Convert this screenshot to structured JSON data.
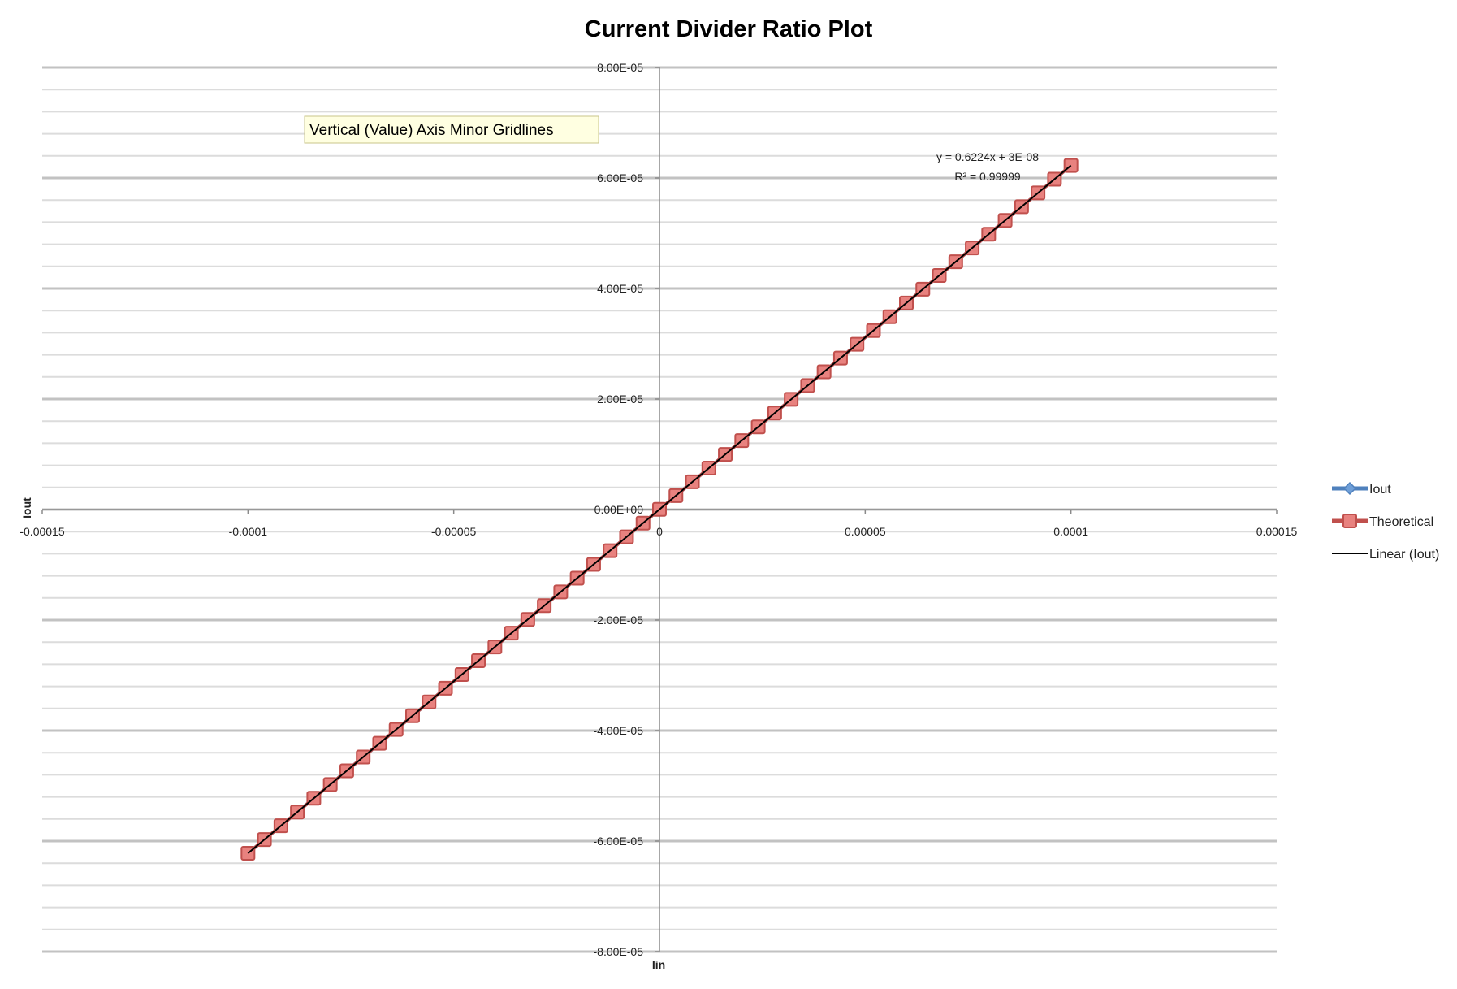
{
  "chart_data": {
    "type": "scatter",
    "title": "Current Divider Ratio Plot",
    "xlabel": "Iin",
    "ylabel": "Iout",
    "xlim": [
      -0.00015,
      0.00015
    ],
    "ylim": [
      -8e-05,
      8e-05
    ],
    "x_ticks": [
      -0.00015,
      -0.0001,
      -5e-05,
      0,
      5e-05,
      0.0001,
      0.00015
    ],
    "x_tick_labels": [
      "-0.00015",
      "-0.0001",
      "-0.00005",
      "0",
      "0.00005",
      "0.0001",
      "0.00015"
    ],
    "y_ticks": [
      8e-05,
      6e-05,
      4e-05,
      2e-05,
      0,
      -2e-05,
      -4e-05,
      -6e-05,
      -8e-05
    ],
    "y_tick_labels": [
      "8.00E-05",
      "6.00E-05",
      "4.00E-05",
      "2.00E-05",
      "0.00E+00",
      "-2.00E-05",
      "-4.00E-05",
      "-6.00E-05",
      "-8.00E-05"
    ],
    "y_minor_step": 4e-06,
    "grid": {
      "major_horizontal": true,
      "minor_horizontal": true,
      "vertical": false
    },
    "legend_position": "right",
    "series": [
      {
        "name": "Iout",
        "color": "#4f81bd",
        "marker": "diamond",
        "x_range": [
          -0.0001,
          0.0001
        ],
        "x_step": 4e-06,
        "slope": 0.6224,
        "intercept": 3e-08
      },
      {
        "name": "Theoretical",
        "color": "#c0504d",
        "marker": "square",
        "x_range": [
          -0.0001,
          0.0001
        ],
        "x_step": 4e-06,
        "slope": 0.6224,
        "intercept": 3e-08
      }
    ],
    "trendline": {
      "name": "Linear (Iout)",
      "color": "#000000",
      "equation": "y = 0.6224x + 3E-08",
      "r_squared": "R² = 0.99999",
      "slope": 0.6224,
      "intercept": 3e-08,
      "x_range": [
        -0.0001,
        0.0001
      ]
    }
  },
  "tooltip": {
    "text": "Vertical (Value) Axis Minor Gridlines"
  }
}
